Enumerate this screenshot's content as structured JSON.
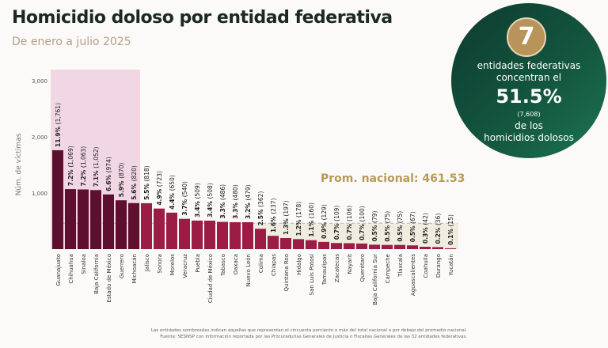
{
  "title": "Homicidio doloso por entidad federativa",
  "subtitle": "De enero a julio 2025",
  "callout": {
    "count": "7",
    "line1": "entidades federativas",
    "line2": "concentran el",
    "percent": "51.5%",
    "victims": "(7,608)",
    "line3": "de los",
    "line4": "homicidios dolosos"
  },
  "average_label": "Prom. nacional: 461.53",
  "notes": [
    "Las entidades sombreadas indican aquellas que representan el cincuenta porciento o más del total nacional o por debajo del promedio nacional.",
    "Fuente: SESNSP con información reportada por las Procuradurías Generales de Justicia o Fiscalías Generales de las 32 entidades federativas."
  ],
  "colors": {
    "top_bars": "#5e0f2e",
    "other_bars": "#9b1c45",
    "top_shade": "#f1d6e3",
    "below_avg_shade": "#efeddf",
    "circle": "#145840",
    "gold": "#b8935a"
  },
  "chart_data": {
    "type": "bar",
    "ylabel": "Núm. de víctimas",
    "ylim": [
      0,
      3000
    ],
    "yticks": [
      "1,000",
      "2,000",
      "3,000"
    ],
    "average": 461.53,
    "shaded_top_count": 7,
    "categories": [
      "Guanajuato",
      "Chihuahua",
      "Sinaloa",
      "Baja California",
      "Estado de México",
      "Guerrero",
      "Michoacán",
      "Jalisco",
      "Sonora",
      "Morelos",
      "Veracruz",
      "Puebla",
      "Ciudad de México",
      "Tabasco",
      "Oaxaca",
      "Nuevo León",
      "Colima",
      "Chiapas",
      "Quintana Roo",
      "Hidalgo",
      "San Luis Potosí",
      "Tamaulipas",
      "Zacatecas",
      "Nayarit",
      "Querétaro",
      "Baja California Sur",
      "Campeche",
      "Tlaxcala",
      "Aguascalientes",
      "Coahuila",
      "Durango",
      "Yucatán"
    ],
    "values": [
      1761,
      1069,
      1063,
      1052,
      974,
      870,
      820,
      818,
      723,
      650,
      540,
      509,
      508,
      486,
      480,
      479,
      362,
      237,
      197,
      178,
      160,
      129,
      109,
      106,
      100,
      79,
      75,
      75,
      67,
      42,
      36,
      15
    ],
    "value_labels": [
      "(1,761)",
      "(1,069)",
      "(1,063)",
      "(1,052)",
      "(974)",
      "(870)",
      "(820)",
      "(818)",
      "(723)",
      "(650)",
      "(540)",
      "(509)",
      "(508)",
      "(486)",
      "(480)",
      "(479)",
      "(362)",
      "(237)",
      "(197)",
      "(178)",
      "(160)",
      "(129)",
      "(109)",
      "(106)",
      "(100)",
      "(79)",
      "(75)",
      "(75)",
      "(67)",
      "(42)",
      "(36)",
      "(15)"
    ],
    "percents": [
      "11.9%",
      "7.2%",
      "7.2%",
      "7.1%",
      "6.6%",
      "5.9%",
      "5.6%",
      "5.5%",
      "4.9%",
      "4.4%",
      "3.7%",
      "3.4%",
      "3.4%",
      "3.3%",
      "3.3%",
      "3.2%",
      "2.5%",
      "1.6%",
      "1.3%",
      "1.2%",
      "1.1%",
      "0.9%",
      "0.7%",
      "0.7%",
      "0.7%",
      "0.5%",
      "0.5%",
      "0.5%",
      "0.5%",
      "0.3%",
      "0.2%",
      "0.1%"
    ]
  }
}
